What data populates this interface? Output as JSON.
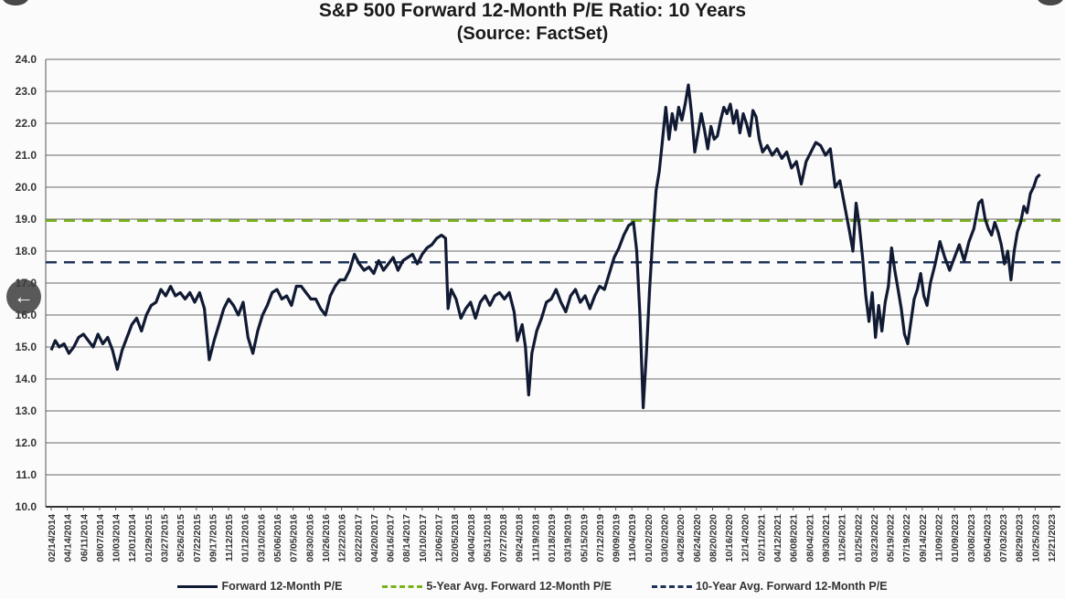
{
  "chart_data": {
    "type": "line",
    "title": "S&P 500 Forward 12-Month P/E Ratio: 10 Years",
    "subtitle": "(Source: FactSet)",
    "ylim": [
      10.0,
      24.0
    ],
    "yticks": [
      "10.0",
      "11.0",
      "12.0",
      "13.0",
      "14.0",
      "15.0",
      "16.0",
      "17.0",
      "18.0",
      "19.0",
      "20.0",
      "21.0",
      "22.0",
      "23.0",
      "24.0"
    ],
    "xticks": [
      "02/14/2014",
      "04/14/2014",
      "06/11/2014",
      "08/07/2014",
      "10/03/2014",
      "12/01/2014",
      "01/29/2015",
      "03/27/2015",
      "05/26/2015",
      "07/22/2015",
      "09/17/2015",
      "11/12/2015",
      "01/12/2016",
      "03/10/2016",
      "05/06/2016",
      "07/05/2016",
      "08/30/2016",
      "10/26/2016",
      "12/22/2016",
      "02/22/2017",
      "04/20/2017",
      "06/16/2017",
      "08/14/2017",
      "10/10/2017",
      "12/06/2017",
      "02/05/2018",
      "04/04/2018",
      "05/31/2018",
      "07/27/2018",
      "09/24/2018",
      "11/19/2018",
      "01/18/2019",
      "03/19/2019",
      "05/15/2019",
      "07/12/2019",
      "09/09/2019",
      "11/04/2019",
      "01/02/2020",
      "03/02/2020",
      "04/28/2020",
      "06/24/2020",
      "08/20/2020",
      "10/16/2020",
      "12/14/2020",
      "02/11/2021",
      "04/12/2021",
      "06/08/2021",
      "08/04/2021",
      "09/30/2021",
      "11/26/2021",
      "01/25/2022",
      "03/23/2022",
      "05/19/2022",
      "07/19/2022",
      "09/14/2022",
      "11/09/2022",
      "01/09/2023",
      "03/08/2023",
      "05/04/2023",
      "07/03/2023",
      "08/29/2023",
      "10/25/2023",
      "12/21/2023"
    ],
    "grid": true,
    "legend_position": "bottom",
    "series": [
      {
        "name": "Forward 12-Month P/E",
        "color": "#101a33",
        "style": "solid",
        "points": [
          [
            0,
            14.9
          ],
          [
            0.25,
            15.2
          ],
          [
            0.5,
            15.0
          ],
          [
            0.8,
            15.1
          ],
          [
            1.1,
            14.8
          ],
          [
            1.4,
            15.0
          ],
          [
            1.7,
            15.3
          ],
          [
            2.0,
            15.4
          ],
          [
            2.3,
            15.2
          ],
          [
            2.6,
            15.0
          ],
          [
            2.9,
            15.4
          ],
          [
            3.2,
            15.1
          ],
          [
            3.5,
            15.3
          ],
          [
            3.8,
            14.9
          ],
          [
            4.1,
            14.3
          ],
          [
            4.4,
            14.9
          ],
          [
            4.7,
            15.3
          ],
          [
            5.0,
            15.7
          ],
          [
            5.3,
            15.9
          ],
          [
            5.6,
            15.5
          ],
          [
            5.9,
            16.0
          ],
          [
            6.2,
            16.3
          ],
          [
            6.5,
            16.4
          ],
          [
            6.8,
            16.8
          ],
          [
            7.1,
            16.6
          ],
          [
            7.4,
            16.9
          ],
          [
            7.7,
            16.6
          ],
          [
            8.0,
            16.7
          ],
          [
            8.3,
            16.5
          ],
          [
            8.6,
            16.7
          ],
          [
            8.9,
            16.4
          ],
          [
            9.2,
            16.7
          ],
          [
            9.5,
            16.2
          ],
          [
            9.8,
            14.6
          ],
          [
            10.1,
            15.2
          ],
          [
            10.4,
            15.7
          ],
          [
            10.7,
            16.2
          ],
          [
            11.0,
            16.5
          ],
          [
            11.3,
            16.3
          ],
          [
            11.6,
            16.0
          ],
          [
            11.9,
            16.4
          ],
          [
            12.2,
            15.3
          ],
          [
            12.5,
            14.8
          ],
          [
            12.8,
            15.5
          ],
          [
            13.1,
            16.0
          ],
          [
            13.4,
            16.3
          ],
          [
            13.7,
            16.7
          ],
          [
            14.0,
            16.8
          ],
          [
            14.3,
            16.5
          ],
          [
            14.6,
            16.6
          ],
          [
            14.9,
            16.3
          ],
          [
            15.2,
            16.9
          ],
          [
            15.5,
            16.9
          ],
          [
            15.8,
            16.7
          ],
          [
            16.1,
            16.5
          ],
          [
            16.4,
            16.5
          ],
          [
            16.7,
            16.2
          ],
          [
            17.0,
            16.0
          ],
          [
            17.3,
            16.6
          ],
          [
            17.6,
            16.9
          ],
          [
            17.9,
            17.1
          ],
          [
            18.2,
            17.1
          ],
          [
            18.5,
            17.4
          ],
          [
            18.8,
            17.9
          ],
          [
            19.1,
            17.6
          ],
          [
            19.4,
            17.4
          ],
          [
            19.7,
            17.5
          ],
          [
            20.0,
            17.3
          ],
          [
            20.3,
            17.7
          ],
          [
            20.6,
            17.4
          ],
          [
            20.9,
            17.6
          ],
          [
            21.2,
            17.8
          ],
          [
            21.5,
            17.4
          ],
          [
            21.8,
            17.7
          ],
          [
            22.1,
            17.8
          ],
          [
            22.4,
            17.9
          ],
          [
            22.7,
            17.6
          ],
          [
            23.0,
            17.9
          ],
          [
            23.3,
            18.1
          ],
          [
            23.6,
            18.2
          ],
          [
            23.9,
            18.4
          ],
          [
            24.2,
            18.5
          ],
          [
            24.45,
            18.4
          ],
          [
            24.6,
            16.2
          ],
          [
            24.8,
            16.8
          ],
          [
            25.1,
            16.5
          ],
          [
            25.4,
            15.9
          ],
          [
            25.7,
            16.2
          ],
          [
            26.0,
            16.4
          ],
          [
            26.3,
            15.9
          ],
          [
            26.6,
            16.4
          ],
          [
            26.9,
            16.6
          ],
          [
            27.2,
            16.3
          ],
          [
            27.5,
            16.6
          ],
          [
            27.8,
            16.7
          ],
          [
            28.1,
            16.5
          ],
          [
            28.4,
            16.7
          ],
          [
            28.7,
            16.1
          ],
          [
            28.9,
            15.2
          ],
          [
            29.2,
            15.7
          ],
          [
            29.4,
            15.0
          ],
          [
            29.6,
            13.5
          ],
          [
            29.8,
            14.8
          ],
          [
            30.1,
            15.5
          ],
          [
            30.4,
            15.9
          ],
          [
            30.7,
            16.4
          ],
          [
            31.0,
            16.5
          ],
          [
            31.3,
            16.8
          ],
          [
            31.6,
            16.4
          ],
          [
            31.9,
            16.1
          ],
          [
            32.2,
            16.6
          ],
          [
            32.5,
            16.8
          ],
          [
            32.8,
            16.4
          ],
          [
            33.1,
            16.6
          ],
          [
            33.4,
            16.2
          ],
          [
            33.7,
            16.6
          ],
          [
            34.0,
            16.9
          ],
          [
            34.3,
            16.8
          ],
          [
            34.6,
            17.3
          ],
          [
            34.9,
            17.8
          ],
          [
            35.2,
            18.1
          ],
          [
            35.5,
            18.5
          ],
          [
            35.8,
            18.8
          ],
          [
            36.1,
            18.9
          ],
          [
            36.3,
            18.0
          ],
          [
            36.5,
            16.0
          ],
          [
            36.7,
            13.1
          ],
          [
            36.9,
            14.8
          ],
          [
            37.1,
            16.8
          ],
          [
            37.3,
            18.5
          ],
          [
            37.5,
            19.9
          ],
          [
            37.7,
            20.5
          ],
          [
            37.9,
            21.5
          ],
          [
            38.1,
            22.5
          ],
          [
            38.3,
            21.5
          ],
          [
            38.5,
            22.3
          ],
          [
            38.7,
            21.8
          ],
          [
            38.9,
            22.5
          ],
          [
            39.1,
            22.1
          ],
          [
            39.3,
            22.6
          ],
          [
            39.5,
            23.2
          ],
          [
            39.7,
            22.3
          ],
          [
            39.9,
            21.1
          ],
          [
            40.1,
            21.7
          ],
          [
            40.3,
            22.3
          ],
          [
            40.5,
            21.8
          ],
          [
            40.7,
            21.2
          ],
          [
            40.9,
            21.9
          ],
          [
            41.1,
            21.5
          ],
          [
            41.3,
            21.6
          ],
          [
            41.5,
            22.1
          ],
          [
            41.7,
            22.5
          ],
          [
            41.9,
            22.3
          ],
          [
            42.1,
            22.6
          ],
          [
            42.3,
            22.0
          ],
          [
            42.5,
            22.4
          ],
          [
            42.7,
            21.7
          ],
          [
            42.9,
            22.3
          ],
          [
            43.1,
            22.0
          ],
          [
            43.3,
            21.6
          ],
          [
            43.5,
            22.4
          ],
          [
            43.7,
            22.2
          ],
          [
            43.9,
            21.5
          ],
          [
            44.1,
            21.1
          ],
          [
            44.4,
            21.3
          ],
          [
            44.7,
            21.0
          ],
          [
            45.0,
            21.2
          ],
          [
            45.3,
            20.9
          ],
          [
            45.6,
            21.1
          ],
          [
            45.9,
            20.6
          ],
          [
            46.2,
            20.8
          ],
          [
            46.5,
            20.1
          ],
          [
            46.8,
            20.8
          ],
          [
            47.1,
            21.1
          ],
          [
            47.4,
            21.4
          ],
          [
            47.7,
            21.3
          ],
          [
            48.0,
            21.0
          ],
          [
            48.3,
            21.2
          ],
          [
            48.6,
            20.0
          ],
          [
            48.9,
            20.2
          ],
          [
            49.2,
            19.4
          ],
          [
            49.5,
            18.6
          ],
          [
            49.7,
            18.0
          ],
          [
            49.9,
            19.5
          ],
          [
            50.1,
            18.8
          ],
          [
            50.3,
            17.8
          ],
          [
            50.5,
            16.6
          ],
          [
            50.7,
            15.8
          ],
          [
            50.9,
            16.7
          ],
          [
            51.1,
            15.3
          ],
          [
            51.3,
            16.3
          ],
          [
            51.5,
            15.5
          ],
          [
            51.7,
            16.4
          ],
          [
            51.9,
            16.9
          ],
          [
            52.1,
            18.1
          ],
          [
            52.3,
            17.4
          ],
          [
            52.5,
            16.8
          ],
          [
            52.7,
            16.2
          ],
          [
            52.9,
            15.4
          ],
          [
            53.1,
            15.1
          ],
          [
            53.3,
            15.8
          ],
          [
            53.5,
            16.5
          ],
          [
            53.7,
            16.8
          ],
          [
            53.9,
            17.3
          ],
          [
            54.1,
            16.6
          ],
          [
            54.3,
            16.3
          ],
          [
            54.5,
            17.0
          ],
          [
            54.8,
            17.6
          ],
          [
            55.1,
            18.3
          ],
          [
            55.4,
            17.8
          ],
          [
            55.7,
            17.4
          ],
          [
            56.0,
            17.8
          ],
          [
            56.3,
            18.2
          ],
          [
            56.6,
            17.7
          ],
          [
            56.9,
            18.3
          ],
          [
            57.2,
            18.7
          ],
          [
            57.5,
            19.5
          ],
          [
            57.7,
            19.6
          ],
          [
            57.9,
            19.0
          ],
          [
            58.1,
            18.7
          ],
          [
            58.3,
            18.5
          ],
          [
            58.5,
            18.9
          ],
          [
            58.7,
            18.6
          ],
          [
            58.9,
            18.2
          ],
          [
            59.1,
            17.6
          ],
          [
            59.3,
            18.0
          ],
          [
            59.5,
            17.1
          ],
          [
            59.7,
            18.0
          ],
          [
            59.9,
            18.6
          ],
          [
            60.1,
            18.9
          ],
          [
            60.3,
            19.4
          ],
          [
            60.5,
            19.2
          ],
          [
            60.7,
            19.8
          ],
          [
            60.9,
            20.0
          ],
          [
            61.1,
            20.3
          ],
          [
            61.3,
            20.4
          ]
        ]
      },
      {
        "name": "5-Year Avg. Forward 12-Month P/E",
        "color": "#7ab317",
        "style": "dashed",
        "value": 18.95
      },
      {
        "name": "10-Year Avg. Forward 12-Month P/E",
        "color": "#1f3358",
        "style": "dashed",
        "value": 17.65
      }
    ]
  }
}
